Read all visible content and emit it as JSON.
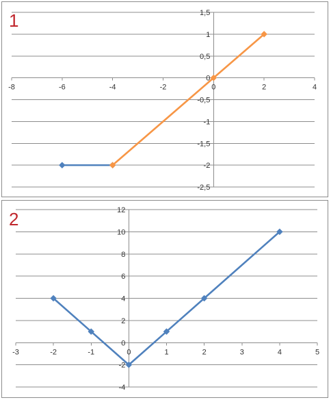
{
  "chart_data": [
    {
      "type": "line",
      "label": "1",
      "xlim": [
        -8,
        4
      ],
      "ylim": [
        -2.5,
        1.5
      ],
      "x_ticks": [
        -8,
        -6,
        -4,
        -2,
        0,
        2,
        4
      ],
      "y_ticks": [
        1.5,
        1,
        0.5,
        0,
        -0.5,
        -1,
        -1.5,
        -2,
        -2.5
      ],
      "x_tick_labels": [
        "-8",
        "-6",
        "-4",
        "-2",
        "0",
        "2",
        "4"
      ],
      "y_tick_labels": [
        "1,5",
        "1",
        "0,5",
        "0",
        "-0,5",
        "-1",
        "-1,5",
        "-2",
        "-2,5"
      ],
      "grid": "horizontal",
      "series": [
        {
          "color": "#4f81bd",
          "marker": "diamond",
          "points": [
            [
              -6,
              -2
            ],
            [
              -4,
              -2
            ]
          ]
        },
        {
          "color": "#f79646",
          "marker": "diamond",
          "points": [
            [
              -4,
              -2
            ],
            [
              0,
              0
            ],
            [
              2,
              1
            ]
          ]
        }
      ]
    },
    {
      "type": "line",
      "label": "2",
      "xlim": [
        -3,
        5
      ],
      "ylim": [
        -4,
        12
      ],
      "x_ticks": [
        -3,
        -2,
        -1,
        0,
        1,
        2,
        3,
        4,
        5
      ],
      "y_ticks": [
        12,
        10,
        8,
        6,
        4,
        2,
        0,
        -2,
        -4
      ],
      "x_tick_labels": [
        "-3",
        "-2",
        "-1",
        "0",
        "1",
        "2",
        "3",
        "4",
        "5"
      ],
      "y_tick_labels": [
        "12",
        "10",
        "8",
        "6",
        "4",
        "2",
        "0",
        "-2",
        "-4"
      ],
      "grid": "horizontal",
      "series": [
        {
          "color": "#4f81bd",
          "marker": "diamond",
          "points": [
            [
              -2,
              4
            ],
            [
              -1,
              1
            ],
            [
              0,
              -2
            ],
            [
              1,
              1
            ],
            [
              2,
              4
            ],
            [
              4,
              10
            ]
          ]
        }
      ]
    }
  ]
}
